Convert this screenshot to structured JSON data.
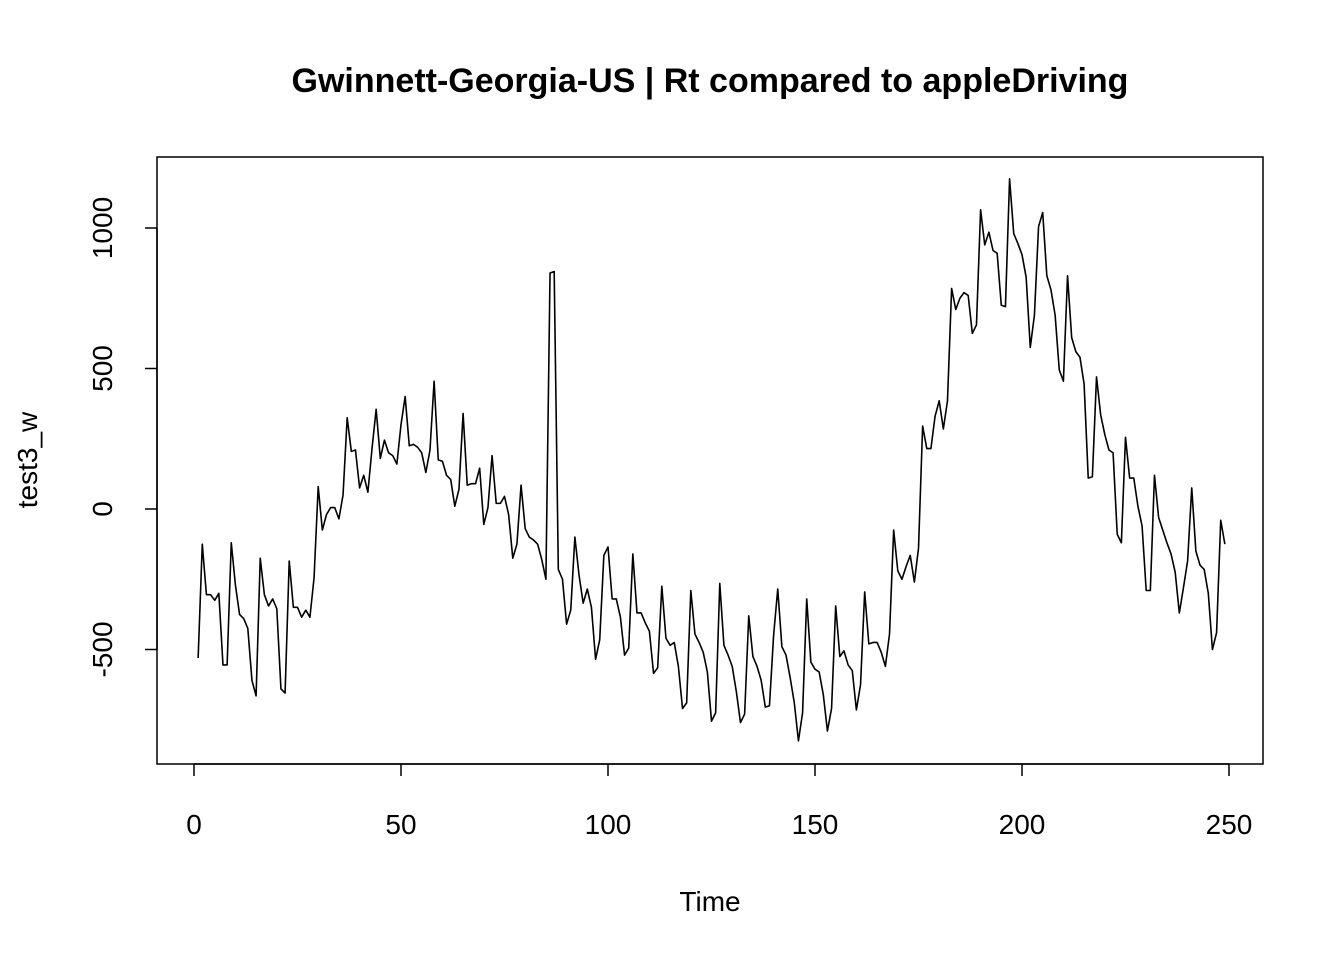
{
  "chart_data": {
    "type": "line",
    "title": "Gwinnett-Georgia-US | Rt compared to appleDriving",
    "xlabel": "Time",
    "ylabel": "test3_w",
    "xlim": [
      1,
      248
    ],
    "ylim": [
      -820,
      1170
    ],
    "x_ticks": [
      0,
      50,
      100,
      150,
      200,
      250
    ],
    "y_ticks": [
      -500,
      0,
      500,
      1000
    ],
    "grid": false,
    "legend": "none",
    "line_color": "#000000",
    "series": [
      {
        "x_start": 1,
        "values": [
          -530,
          -125,
          -305,
          -305,
          -325,
          -300,
          -555,
          -555,
          -120,
          -270,
          -375,
          -390,
          -425,
          -610,
          -665,
          -175,
          -305,
          -345,
          -320,
          -355,
          -640,
          -655,
          -185,
          -350,
          -350,
          -385,
          -360,
          -385,
          -245,
          80,
          -75,
          -20,
          5,
          5,
          -35,
          50,
          325,
          205,
          210,
          75,
          120,
          60,
          215,
          355,
          180,
          245,
          200,
          190,
          160,
          300,
          400,
          225,
          230,
          220,
          200,
          130,
          210,
          455,
          175,
          170,
          120,
          105,
          10,
          70,
          340,
          85,
          90,
          90,
          145,
          -55,
          5,
          190,
          20,
          20,
          45,
          -20,
          -175,
          -125,
          85,
          -70,
          -100,
          -110,
          -125,
          -180,
          -250,
          840,
          845,
          -215,
          -250,
          -410,
          -360,
          -100,
          -235,
          -335,
          -285,
          -350,
          -535,
          -465,
          -165,
          -135,
          -320,
          -320,
          -385,
          -520,
          -495,
          -160,
          -370,
          -370,
          -405,
          -435,
          -585,
          -565,
          -275,
          -460,
          -485,
          -475,
          -560,
          -710,
          -690,
          -290,
          -445,
          -475,
          -510,
          -580,
          -755,
          -725,
          -265,
          -485,
          -520,
          -560,
          -650,
          -760,
          -730,
          -380,
          -525,
          -560,
          -610,
          -705,
          -700,
          -450,
          -285,
          -490,
          -520,
          -600,
          -690,
          -825,
          -725,
          -320,
          -545,
          -570,
          -580,
          -660,
          -790,
          -710,
          -345,
          -525,
          -505,
          -555,
          -575,
          -715,
          -625,
          -295,
          -480,
          -475,
          -475,
          -510,
          -560,
          -445,
          -75,
          -220,
          -250,
          -205,
          -165,
          -260,
          -140,
          295,
          215,
          215,
          330,
          385,
          285,
          385,
          785,
          710,
          750,
          770,
          760,
          625,
          655,
          1065,
          940,
          985,
          920,
          910,
          725,
          720,
          1175,
          980,
          945,
          905,
          825,
          575,
          690,
          1005,
          1055,
          830,
          780,
          690,
          495,
          455,
          830,
          610,
          560,
          540,
          445,
          110,
          115,
          470,
          335,
          265,
          210,
          200,
          -90,
          -120,
          255,
          110,
          110,
          10,
          -60,
          -290,
          -290,
          120,
          -30,
          -75,
          -120,
          -160,
          -225,
          -370,
          -280,
          -185,
          75,
          -150,
          -200,
          -215,
          -300,
          -500,
          -440,
          -40,
          -125
        ]
      }
    ]
  }
}
